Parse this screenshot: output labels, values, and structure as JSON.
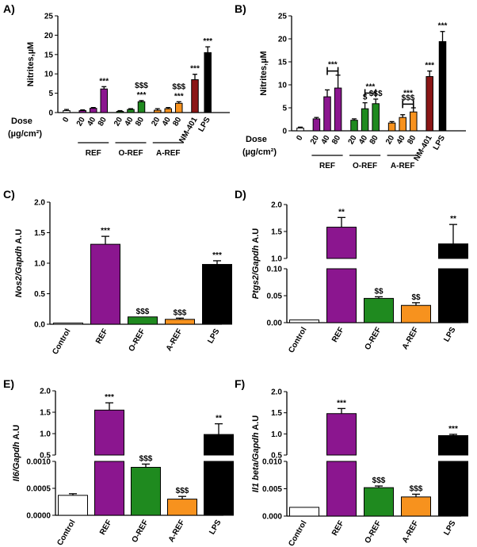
{
  "colors": {
    "white": "#ffffff",
    "purple": "#8b168f",
    "green": "#1f8a1f",
    "orange": "#f7921e",
    "darkred": "#8b1616",
    "black": "#000000"
  },
  "chart_data": [
    {
      "panel": "A)",
      "type": "bar",
      "ylabel": "Nitrites,µM",
      "ylim": [
        0,
        25
      ],
      "yticks": [
        0,
        5,
        10,
        15,
        20,
        25
      ],
      "x_title": [
        "Dose",
        "(µg/cm²)"
      ],
      "bars": [
        {
          "label": "0",
          "value": 0.5,
          "err": 0.3,
          "color": "white"
        },
        {
          "label": "20",
          "value": 0.5,
          "err": 0.2,
          "color": "purple"
        },
        {
          "label": "40",
          "value": 1.1,
          "err": 0.2,
          "color": "purple"
        },
        {
          "label": "80",
          "value": 6.1,
          "err": 0.6,
          "color": "purple",
          "annot": [
            "***"
          ]
        },
        {
          "label": "20",
          "value": 0.3,
          "err": 0.2,
          "color": "green"
        },
        {
          "label": "40",
          "value": 0.8,
          "err": 0.2,
          "color": "green"
        },
        {
          "label": "80",
          "value": 2.8,
          "err": 0.3,
          "color": "green",
          "annot": [
            "$$$",
            "***"
          ]
        },
        {
          "label": "20",
          "value": 0.6,
          "err": 0.4,
          "color": "orange"
        },
        {
          "label": "40",
          "value": 1.0,
          "err": 0.3,
          "color": "orange"
        },
        {
          "label": "80",
          "value": 2.4,
          "err": 0.4,
          "color": "orange",
          "annot": [
            "$$$",
            "***"
          ]
        },
        {
          "label": "NM-401",
          "value": 8.5,
          "err": 1.4,
          "color": "darkred",
          "annot": [
            "***"
          ]
        },
        {
          "label": "LPS",
          "value": 15.5,
          "err": 1.5,
          "color": "black",
          "annot": [
            "***"
          ]
        }
      ],
      "groups": [
        {
          "label": "REF",
          "from": 1,
          "to": 3
        },
        {
          "label": "O-REF",
          "from": 4,
          "to": 6
        },
        {
          "label": "A-REF",
          "from": 7,
          "to": 9
        }
      ],
      "brackets": []
    },
    {
      "panel": "B)",
      "type": "bar",
      "ylabel": "Nitrites,µM",
      "ylim": [
        0,
        25
      ],
      "yticks": [
        0,
        5,
        10,
        15,
        20,
        25
      ],
      "x_title": [
        "Dose",
        "(µg/cm²)"
      ],
      "bars": [
        {
          "label": "0",
          "value": 0.6,
          "err": 0.2,
          "color": "white"
        },
        {
          "label": "20",
          "value": 2.6,
          "err": 0.3,
          "color": "purple"
        },
        {
          "label": "40",
          "value": 7.4,
          "err": 1.5,
          "color": "purple"
        },
        {
          "label": "80",
          "value": 9.3,
          "err": 2.8,
          "color": "purple"
        },
        {
          "label": "20",
          "value": 2.3,
          "err": 0.3,
          "color": "green"
        },
        {
          "label": "40",
          "value": 4.8,
          "err": 1.3,
          "color": "green",
          "annot": [
            "$"
          ]
        },
        {
          "label": "80",
          "value": 5.9,
          "err": 1.0,
          "color": "green",
          "annot": [
            "$$$"
          ]
        },
        {
          "label": "20",
          "value": 1.7,
          "err": 0.3,
          "color": "orange"
        },
        {
          "label": "40",
          "value": 2.9,
          "err": 0.6,
          "color": "orange"
        },
        {
          "label": "80",
          "value": 4.1,
          "err": 0.9,
          "color": "orange"
        },
        {
          "label": "NM-401",
          "value": 11.8,
          "err": 1.2,
          "color": "darkred",
          "annot": [
            "***"
          ]
        },
        {
          "label": "LPS",
          "value": 19.4,
          "err": 2.2,
          "color": "black",
          "annot": [
            "***"
          ]
        }
      ],
      "groups": [
        {
          "label": "REF",
          "from": 1,
          "to": 3
        },
        {
          "label": "O-REF",
          "from": 4,
          "to": 6
        },
        {
          "label": "A-REF",
          "from": 7,
          "to": 9
        }
      ],
      "brackets": [
        {
          "from": 2,
          "to": 3,
          "y": 13.0,
          "text": "***"
        },
        {
          "from": 5,
          "to": 6,
          "y": 8.2,
          "text": "***"
        },
        {
          "from": 8,
          "to": 9,
          "y": 5.8,
          "text": "$$$"
        },
        {
          "from": 8,
          "to": 9,
          "y": 6.8,
          "text": "***",
          "text_only": true
        }
      ]
    },
    {
      "panel": "C)",
      "type": "bar",
      "ylabel_italic": "Nos2/Gapdh",
      "ylabel_suffix": " A.U",
      "ylim": [
        0,
        2.0
      ],
      "yticks": [
        0.0,
        0.5,
        1.0,
        1.5,
        2.0
      ],
      "decimals": 1,
      "bars": [
        {
          "label": "Control",
          "value": 0.02,
          "err": 0.0,
          "color": "white"
        },
        {
          "label": "REF",
          "value": 1.31,
          "err": 0.13,
          "color": "purple",
          "annot": [
            "***"
          ]
        },
        {
          "label": "O-REF",
          "value": 0.12,
          "err": 0.0,
          "color": "green",
          "annot": [
            "$$$"
          ]
        },
        {
          "label": "A-REF",
          "value": 0.08,
          "err": 0.02,
          "color": "orange",
          "annot": [
            "$$$"
          ]
        },
        {
          "label": "LPS",
          "value": 0.98,
          "err": 0.06,
          "color": "black",
          "annot": [
            "***"
          ]
        }
      ]
    },
    {
      "panel": "D)",
      "type": "bar",
      "ylabel_italic": "Ptgs2/Gapdh",
      "ylabel_suffix": " A.U",
      "broken": true,
      "low_ylim": [
        0,
        0.1
      ],
      "low_ticks": [
        0.0,
        0.05,
        0.1
      ],
      "low_decimals": 2,
      "high_ylim": [
        1.0,
        2.0
      ],
      "high_ticks": [
        1.0,
        1.5,
        2.0
      ],
      "high_decimals": 1,
      "bars": [
        {
          "label": "Control",
          "value": 0.005,
          "err": 0.0,
          "color": "white"
        },
        {
          "label": "REF",
          "value": 1.58,
          "err": 0.18,
          "color": "purple",
          "annot": [
            "**"
          ]
        },
        {
          "label": "O-REF",
          "value": 0.045,
          "err": 0.003,
          "color": "green",
          "annot": [
            "$$"
          ]
        },
        {
          "label": "A-REF",
          "value": 0.032,
          "err": 0.005,
          "color": "orange",
          "annot": [
            "$$"
          ]
        },
        {
          "label": "LPS",
          "value": 1.27,
          "err": 0.36,
          "color": "black",
          "annot": [
            "**"
          ]
        }
      ]
    },
    {
      "panel": "E)",
      "type": "bar",
      "ylabel_italic": "Il6/Gapdh",
      "ylabel_suffix": " A.U",
      "broken": true,
      "low_ylim": [
        0,
        0.001
      ],
      "low_ticks": [
        0.0,
        0.0005,
        0.001
      ],
      "low_decimals": 4,
      "high_ylim": [
        0.5,
        2.0
      ],
      "high_ticks": [
        0.5,
        1.0,
        1.5,
        2.0
      ],
      "high_decimals": 1,
      "bars": [
        {
          "label": "Control",
          "value": 0.00037,
          "err": 3e-05,
          "color": "white"
        },
        {
          "label": "REF",
          "value": 1.55,
          "err": 0.17,
          "color": "purple",
          "annot": [
            "***"
          ]
        },
        {
          "label": "O-REF",
          "value": 0.00089,
          "err": 6e-05,
          "color": "green",
          "annot": [
            "$$$"
          ]
        },
        {
          "label": "A-REF",
          "value": 0.0003,
          "err": 5e-05,
          "color": "orange",
          "annot": [
            "$$$"
          ]
        },
        {
          "label": "LPS",
          "value": 0.98,
          "err": 0.25,
          "color": "black",
          "annot": [
            "**"
          ]
        }
      ]
    },
    {
      "panel": "F)",
      "type": "bar",
      "ylabel_italic": "Il1 beta/Gapdh",
      "ylabel_suffix": " A.U",
      "broken": true,
      "low_ylim": [
        0,
        0.01
      ],
      "low_ticks": [
        0.0,
        0.005,
        0.01
      ],
      "low_decimals": 3,
      "high_ylim": [
        0.5,
        2.0
      ],
      "high_ticks": [
        0.5,
        1.0,
        1.5,
        2.0
      ],
      "high_decimals": 1,
      "bars": [
        {
          "label": "Control",
          "value": 0.0016,
          "err": 0.0,
          "color": "white"
        },
        {
          "label": "REF",
          "value": 1.48,
          "err": 0.12,
          "color": "purple",
          "annot": [
            "***"
          ]
        },
        {
          "label": "O-REF",
          "value": 0.0052,
          "err": 0.0003,
          "color": "green",
          "annot": [
            "$$$"
          ]
        },
        {
          "label": "A-REF",
          "value": 0.0035,
          "err": 0.0005,
          "color": "orange",
          "annot": [
            "$$$"
          ]
        },
        {
          "label": "LPS",
          "value": 0.96,
          "err": 0.03,
          "color": "black",
          "annot": [
            "***"
          ]
        }
      ]
    }
  ]
}
